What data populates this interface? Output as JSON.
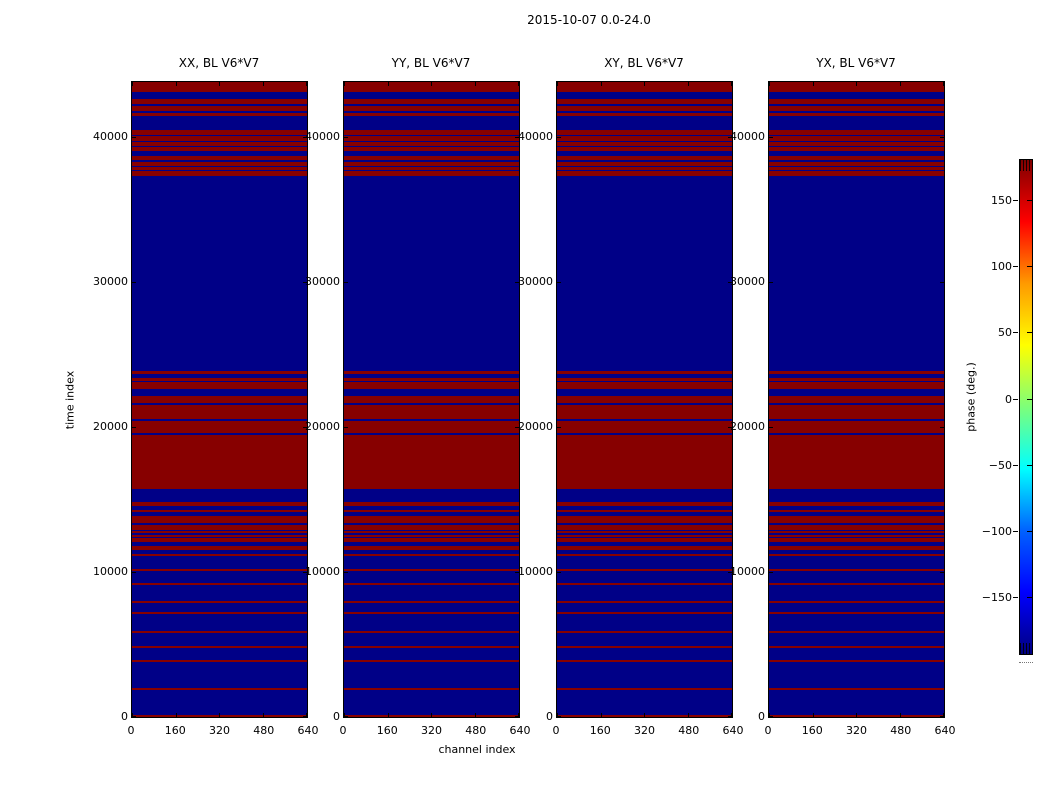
{
  "figure": {
    "suptitle": "2015-10-07 0.0-24.0",
    "xlabel": "channel index",
    "ylabel": "time index",
    "colorbar_label": "phase (deg.)"
  },
  "colors": {
    "band_red": "#870000",
    "background_blue": "#000087",
    "axis_black": "#000000",
    "figure_bg": "#ffffff"
  },
  "chart_data": {
    "type": "heatmap",
    "title": "2015-10-07 0.0-24.0",
    "xlabel": "channel index",
    "ylabel": "time index",
    "panels": [
      {
        "title": "XX, BL V6*V7"
      },
      {
        "title": "YY, BL V6*V7"
      },
      {
        "title": "XY, BL V6*V7"
      },
      {
        "title": "YX, BL V6*V7"
      }
    ],
    "x_axis": {
      "range": [
        0,
        640
      ],
      "ticks": [
        0,
        160,
        320,
        480,
        640
      ]
    },
    "y_axis": {
      "range": [
        0,
        43800
      ],
      "ticks": [
        0,
        10000,
        20000,
        30000,
        40000
      ]
    },
    "colorbar": {
      "label": "phase (deg.)",
      "colormap": "jet",
      "tick_labels": [
        "150",
        "100",
        "50",
        "0",
        "−50",
        "−100",
        "−150"
      ],
      "tick_values": [
        150,
        100,
        50,
        0,
        -50,
        -100,
        -150
      ],
      "range_deg": [
        -180,
        180
      ]
    },
    "legend": "none",
    "grid": false,
    "values": {
      "background_phase_deg": -180,
      "band_phase_deg": 180,
      "note": "all four panels share identical horizontal band pattern spanning full channel range"
    },
    "red_band_time_ranges": [
      [
        0,
        120
      ],
      [
        1840,
        1975
      ],
      [
        3805,
        3940
      ],
      [
        4765,
        4900
      ],
      [
        5820,
        5955
      ],
      [
        7100,
        7235
      ],
      [
        7855,
        7990
      ],
      [
        9115,
        9250
      ],
      [
        10100,
        10240
      ],
      [
        11085,
        11270
      ],
      [
        11545,
        11775
      ],
      [
        12050,
        12325
      ],
      [
        12415,
        12575
      ],
      [
        12665,
        12830
      ],
      [
        12920,
        13260
      ],
      [
        13375,
        13830
      ],
      [
        14130,
        14290
      ],
      [
        14565,
        14820
      ],
      [
        15730,
        19465
      ],
      [
        19600,
        20450
      ],
      [
        20565,
        21550
      ],
      [
        21665,
        22120
      ],
      [
        22625,
        23080
      ],
      [
        23170,
        23400
      ],
      [
        23680,
        23900
      ],
      [
        37340,
        37660
      ],
      [
        37750,
        37935
      ],
      [
        38025,
        38260
      ],
      [
        38400,
        38670
      ],
      [
        39040,
        39310
      ],
      [
        39400,
        39635
      ],
      [
        39725,
        40050
      ],
      [
        40140,
        40500
      ],
      [
        41420,
        41630
      ],
      [
        41770,
        42130
      ],
      [
        42250,
        42660
      ],
      [
        43115,
        43800
      ]
    ]
  }
}
